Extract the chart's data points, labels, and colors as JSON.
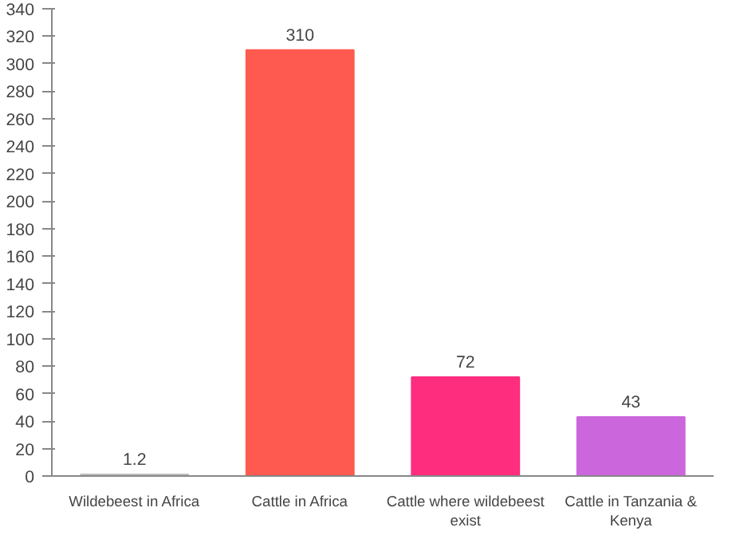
{
  "chart_data": {
    "type": "bar",
    "categories": [
      "Wildebeest in Africa",
      "Cattle in Africa",
      "Cattle where wildebeest exist",
      "Cattle in Tanzania & Kenya"
    ],
    "values": [
      1.2,
      310,
      72,
      43
    ],
    "colors": [
      "#bdbdbd",
      "#ff5a4f",
      "#ff2d7e",
      "#cc66dd"
    ],
    "ylim": [
      0,
      340
    ],
    "yticks": [
      0,
      20,
      40,
      60,
      80,
      100,
      120,
      140,
      160,
      180,
      200,
      220,
      240,
      260,
      280,
      300,
      320,
      340
    ],
    "data_labels": true,
    "grid": false
  }
}
